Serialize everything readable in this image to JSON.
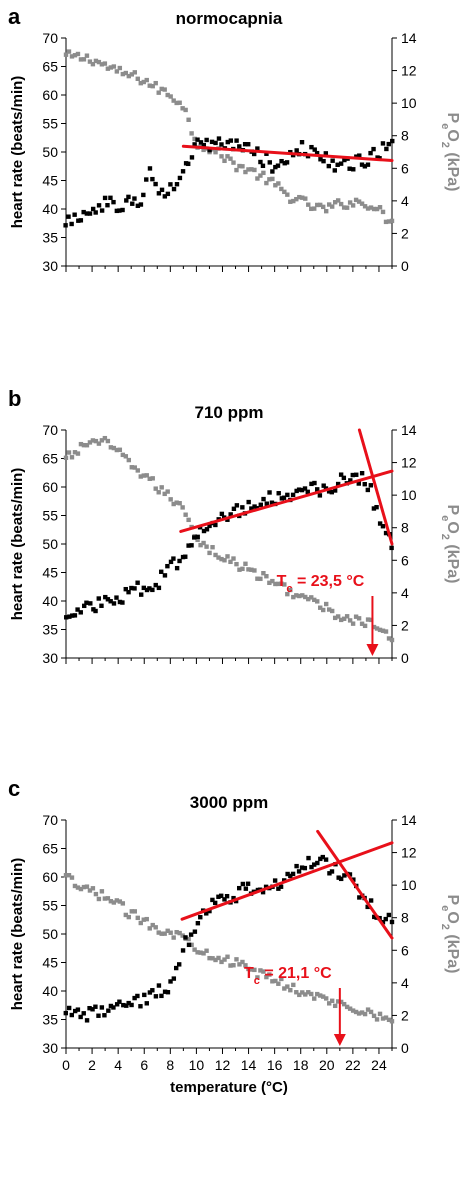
{
  "chart_data": [
    {
      "type": "scatter",
      "panel_label": "a",
      "title": "normocapnia",
      "ylabel": "heart rate (beats/min)",
      "y2label": "PeO2 (kPa)",
      "xlabel": "",
      "xlim": [
        0,
        25
      ],
      "ylim": [
        30,
        70
      ],
      "y2lim": [
        0,
        14
      ],
      "xticks": [
        0,
        2,
        4,
        6,
        8,
        10,
        12,
        14,
        16,
        18,
        20,
        22,
        24
      ],
      "xtick_labels_shown": false,
      "yticks": [
        30,
        35,
        40,
        45,
        50,
        55,
        60,
        65,
        70
      ],
      "y2ticks": [
        0,
        2,
        4,
        6,
        8,
        10,
        12,
        14
      ],
      "annotation": "",
      "annotation_sub": "",
      "arrow_x": null,
      "colors": {
        "heart_rate": "#000000",
        "peo2": "#8c8c8c",
        "fit": "#e8101a"
      },
      "heart_rate_anchors": [
        [
          0,
          38
        ],
        [
          1,
          39
        ],
        [
          2,
          40
        ],
        [
          3,
          41
        ],
        [
          3.5,
          41.5
        ],
        [
          4,
          40.5
        ],
        [
          5,
          41
        ],
        [
          5.7,
          41.5
        ],
        [
          6.3,
          47
        ],
        [
          6.8,
          44.5
        ],
        [
          7.5,
          43
        ],
        [
          8.3,
          43.5
        ],
        [
          9,
          45.5
        ],
        [
          9.5,
          49
        ],
        [
          10,
          51
        ],
        [
          11,
          51
        ],
        [
          12,
          51.5
        ],
        [
          13,
          51
        ],
        [
          14,
          50.5
        ],
        [
          15,
          49
        ],
        [
          16,
          47.5
        ],
        [
          17,
          49
        ],
        [
          18,
          50.5
        ],
        [
          19,
          50
        ],
        [
          20,
          48.5
        ],
        [
          21,
          47
        ],
        [
          22,
          48
        ],
        [
          23,
          48.5
        ],
        [
          24,
          50
        ],
        [
          25,
          51
        ]
      ],
      "peo2_anchors": [
        [
          0,
          12.9
        ],
        [
          1,
          12.8
        ],
        [
          2,
          12.7
        ],
        [
          3,
          12.3
        ],
        [
          4,
          11.9
        ],
        [
          5,
          11.7
        ],
        [
          6,
          11.4
        ],
        [
          7,
          10.9
        ],
        [
          8,
          10.5
        ],
        [
          9,
          9.9
        ],
        [
          9.5,
          8.6
        ],
        [
          10,
          7.6
        ],
        [
          11,
          7.2
        ],
        [
          12,
          6.8
        ],
        [
          13,
          6.2
        ],
        [
          14,
          5.9
        ],
        [
          15,
          5.5
        ],
        [
          16,
          5.0
        ],
        [
          17,
          4.3
        ],
        [
          18,
          4.0
        ],
        [
          19,
          3.6
        ],
        [
          20,
          3.5
        ],
        [
          21,
          3.8
        ],
        [
          22,
          3.9
        ],
        [
          23,
          3.9
        ],
        [
          24,
          3.4
        ],
        [
          25,
          2.6
        ]
      ],
      "fit_lines": [
        {
          "x": [
            9,
            25
          ],
          "y": [
            51,
            48.5
          ]
        }
      ]
    },
    {
      "type": "scatter",
      "panel_label": "b",
      "title": "710 ppm",
      "ylabel": "heart rate (beats/min)",
      "y2label": "PeO2 (kPa)",
      "xlabel": "",
      "xlim": [
        0,
        25
      ],
      "ylim": [
        30,
        70
      ],
      "y2lim": [
        0,
        14
      ],
      "xticks": [
        0,
        2,
        4,
        6,
        8,
        10,
        12,
        14,
        16,
        18,
        20,
        22,
        24
      ],
      "xtick_labels_shown": false,
      "yticks": [
        30,
        35,
        40,
        45,
        50,
        55,
        60,
        65,
        70
      ],
      "y2ticks": [
        0,
        2,
        4,
        6,
        8,
        10,
        12,
        14
      ],
      "annotation": "T",
      "annotation_sub": "c",
      "annotation_value": " = 23,5 °C",
      "arrow_x": 23.5,
      "colors": {
        "heart_rate": "#000000",
        "peo2": "#8c8c8c",
        "fit": "#e8101a"
      },
      "heart_rate_anchors": [
        [
          0,
          38
        ],
        [
          1,
          38.5
        ],
        [
          2,
          39.5
        ],
        [
          3,
          39.5
        ],
        [
          4,
          40
        ],
        [
          5,
          41.5
        ],
        [
          6,
          42.5
        ],
        [
          7,
          43
        ],
        [
          7.5,
          45
        ],
        [
          8,
          46
        ],
        [
          9,
          47.5
        ],
        [
          9.5,
          49.5
        ],
        [
          10,
          51.5
        ],
        [
          11,
          54
        ],
        [
          12,
          55
        ],
        [
          13,
          55.5
        ],
        [
          14,
          56.5
        ],
        [
          15,
          57.5
        ],
        [
          16,
          58
        ],
        [
          17,
          59
        ],
        [
          18,
          59
        ],
        [
          19,
          59.5
        ],
        [
          20,
          60
        ],
        [
          21,
          61
        ],
        [
          22,
          61
        ],
        [
          22.5,
          62
        ],
        [
          23.3,
          60
        ],
        [
          23.8,
          56
        ],
        [
          24.3,
          53
        ],
        [
          25,
          50.5
        ]
      ],
      "peo2_anchors": [
        [
          0,
          12.2
        ],
        [
          1,
          12.8
        ],
        [
          2,
          13.4
        ],
        [
          3,
          13.2
        ],
        [
          4,
          12.6
        ],
        [
          5,
          11.9
        ],
        [
          6,
          11.2
        ],
        [
          7,
          10.5
        ],
        [
          8,
          9.8
        ],
        [
          9,
          9.3
        ],
        [
          9.5,
          8.5
        ],
        [
          10,
          7.3
        ],
        [
          11,
          6.7
        ],
        [
          12,
          6.2
        ],
        [
          13,
          5.8
        ],
        [
          14,
          5.4
        ],
        [
          15,
          5.0
        ],
        [
          16,
          4.6
        ],
        [
          17,
          4.2
        ],
        [
          18,
          3.8
        ],
        [
          19,
          3.4
        ],
        [
          20,
          3.0
        ],
        [
          21,
          2.6
        ],
        [
          22,
          2.3
        ],
        [
          23,
          2.2
        ],
        [
          24,
          1.9
        ],
        [
          25,
          0.9
        ]
      ],
      "fit_lines": [
        {
          "x": [
            8.8,
            25
          ],
          "y": [
            52.2,
            62.8
          ]
        },
        {
          "x": [
            22.5,
            25
          ],
          "y": [
            70,
            50
          ]
        }
      ]
    },
    {
      "type": "scatter",
      "panel_label": "c",
      "title": "3000 ppm",
      "ylabel": "heart rate (beats/min)",
      "y2label": "PeO2 (kPa)",
      "xlabel": "temperature (°C)",
      "xlim": [
        0,
        25
      ],
      "ylim": [
        30,
        70
      ],
      "y2lim": [
        0,
        14
      ],
      "xticks": [
        0,
        2,
        4,
        6,
        8,
        10,
        12,
        14,
        16,
        18,
        20,
        22,
        24
      ],
      "xtick_labels_shown": true,
      "yticks": [
        30,
        35,
        40,
        45,
        50,
        55,
        60,
        65,
        70
      ],
      "y2ticks": [
        0,
        2,
        4,
        6,
        8,
        10,
        12,
        14
      ],
      "annotation": "T",
      "annotation_sub": "c",
      "annotation_value": " = 21,1 °C",
      "arrow_x": 21,
      "colors": {
        "heart_rate": "#000000",
        "peo2": "#8c8c8c",
        "fit": "#e8101a"
      },
      "heart_rate_anchors": [
        [
          0,
          37
        ],
        [
          1,
          35.5
        ],
        [
          2,
          36
        ],
        [
          3,
          37
        ],
        [
          4,
          38
        ],
        [
          5,
          38.5
        ],
        [
          6,
          38.5
        ],
        [
          7,
          39.5
        ],
        [
          8,
          41
        ],
        [
          8.5,
          44
        ],
        [
          9,
          48
        ],
        [
          10,
          51
        ],
        [
          11,
          55
        ],
        [
          12,
          56
        ],
        [
          13,
          57
        ],
        [
          14,
          58
        ],
        [
          15,
          58
        ],
        [
          16,
          58.5
        ],
        [
          17,
          60.5
        ],
        [
          18,
          62
        ],
        [
          19,
          63
        ],
        [
          20,
          62
        ],
        [
          21,
          61
        ],
        [
          22,
          59
        ],
        [
          23,
          56
        ],
        [
          24,
          53
        ],
        [
          25,
          53
        ]
      ],
      "peo2_anchors": [
        [
          0,
          10.5
        ],
        [
          1,
          9.8
        ],
        [
          2,
          9.6
        ],
        [
          3,
          9.3
        ],
        [
          4,
          8.8
        ],
        [
          5,
          8.2
        ],
        [
          6,
          7.8
        ],
        [
          7,
          7.4
        ],
        [
          8,
          7.1
        ],
        [
          9,
          6.8
        ],
        [
          10,
          6.2
        ],
        [
          11,
          5.8
        ],
        [
          12,
          5.5
        ],
        [
          13,
          5.2
        ],
        [
          14,
          4.8
        ],
        [
          15,
          4.5
        ],
        [
          16,
          4.2
        ],
        [
          17,
          3.8
        ],
        [
          18,
          3.5
        ],
        [
          19,
          3.2
        ],
        [
          20,
          2.9
        ],
        [
          21,
          2.7
        ],
        [
          22,
          2.5
        ],
        [
          23,
          2.3
        ],
        [
          24,
          2.0
        ],
        [
          25,
          1.4
        ]
      ],
      "fit_lines": [
        {
          "x": [
            8.9,
            25
          ],
          "y": [
            52.6,
            66
          ]
        },
        {
          "x": [
            19.3,
            25
          ],
          "y": [
            68,
            49.3
          ]
        }
      ]
    }
  ]
}
